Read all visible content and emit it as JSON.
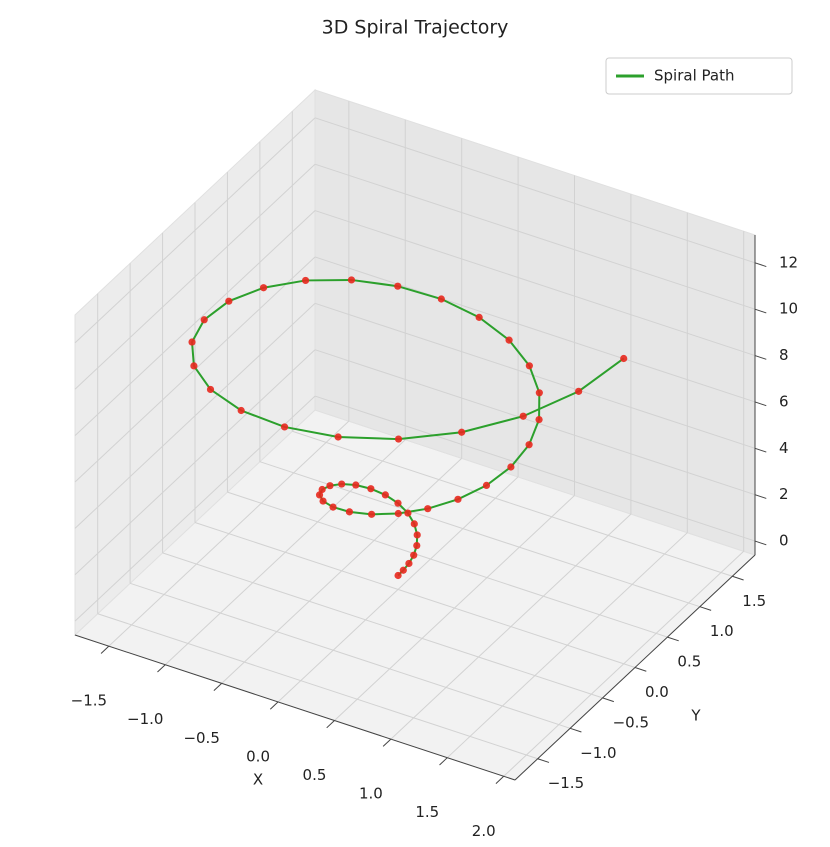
{
  "chart_data": {
    "type": "line3d",
    "title": "3D Spiral Trajectory",
    "xlabel": "X",
    "ylabel": "Y",
    "legend": "upper right",
    "grid": true,
    "xlim": [
      -1.8,
      2.1
    ],
    "ylim": [
      -1.85,
      1.85
    ],
    "zlim": [
      -0.6,
      13.2
    ],
    "xticks": [
      {
        "value": -1.5,
        "label": "−1.5"
      },
      {
        "value": -1,
        "label": "−1.0"
      },
      {
        "value": -0.5,
        "label": "−0.5"
      },
      {
        "value": 0,
        "label": "0.0"
      },
      {
        "value": 0.5,
        "label": "0.5"
      },
      {
        "value": 1,
        "label": "1.0"
      },
      {
        "value": 1.5,
        "label": "1.5"
      },
      {
        "value": 2,
        "label": "2.0"
      }
    ],
    "yticks": [
      {
        "value": -1.5,
        "label": "−1.5"
      },
      {
        "value": -1,
        "label": "−1.0"
      },
      {
        "value": -0.5,
        "label": "−0.5"
      },
      {
        "value": 0,
        "label": "0.0"
      },
      {
        "value": 0.5,
        "label": "0.5"
      },
      {
        "value": 1,
        "label": "1.0"
      },
      {
        "value": 1.5,
        "label": "1.5"
      }
    ],
    "zticks": [
      0,
      2,
      4,
      6,
      8,
      10,
      12
    ],
    "series": [
      {
        "name": "Spiral Path",
        "color": "#2ca02c",
        "marker_color": "#e8281e",
        "x": [
          0,
          0.04,
          0.072,
          0.088,
          0.083,
          0.054,
          0,
          -0.075,
          -0.167,
          -0.265,
          -0.361,
          -0.443,
          -0.5,
          -0.523,
          -0.505,
          -0.442,
          -0.333,
          -0.183,
          0,
          0.205,
          0.417,
          0.619,
          0.794,
          0.926,
          1,
          1.006,
          0.938,
          0.795,
          0.583,
          0.313,
          0,
          -0.334,
          -0.667,
          -0.972,
          -1.227,
          -1.409,
          -1.5,
          -1.489,
          -1.371,
          -1.149,
          -0.833,
          -0.442,
          0,
          0.464,
          0.917,
          1.326,
          1.66,
          1.892,
          2
        ],
        "y": [
          0,
          0.011,
          0.042,
          0.088,
          0.144,
          0.201,
          0.25,
          0.282,
          0.289,
          0.265,
          0.208,
          0.119,
          0,
          -0.14,
          -0.292,
          -0.442,
          -0.577,
          -0.684,
          -0.75,
          -0.765,
          -0.722,
          -0.619,
          -0.458,
          -0.248,
          0,
          0.27,
          0.542,
          0.795,
          1.01,
          1.167,
          1.25,
          1.248,
          1.155,
          0.972,
          0.708,
          0.377,
          0,
          -0.399,
          -0.792,
          -1.149,
          -1.443,
          -1.65,
          -1.75,
          -1.731,
          -1.588,
          -1.326,
          -0.958,
          -0.507,
          0
        ],
        "z": [
          0,
          0.262,
          0.524,
          0.785,
          1.047,
          1.309,
          1.571,
          1.833,
          2.094,
          2.356,
          2.618,
          2.88,
          3.142,
          3.403,
          3.665,
          3.927,
          4.189,
          4.451,
          4.712,
          4.974,
          5.236,
          5.498,
          5.76,
          6.021,
          6.283,
          6.545,
          6.807,
          7.069,
          7.33,
          7.592,
          7.854,
          8.116,
          8.378,
          8.639,
          8.901,
          9.163,
          9.425,
          9.687,
          9.948,
          10.21,
          10.472,
          10.734,
          10.996,
          11.257,
          11.519,
          11.781,
          12.043,
          12.305,
          12.566
        ]
      }
    ]
  }
}
